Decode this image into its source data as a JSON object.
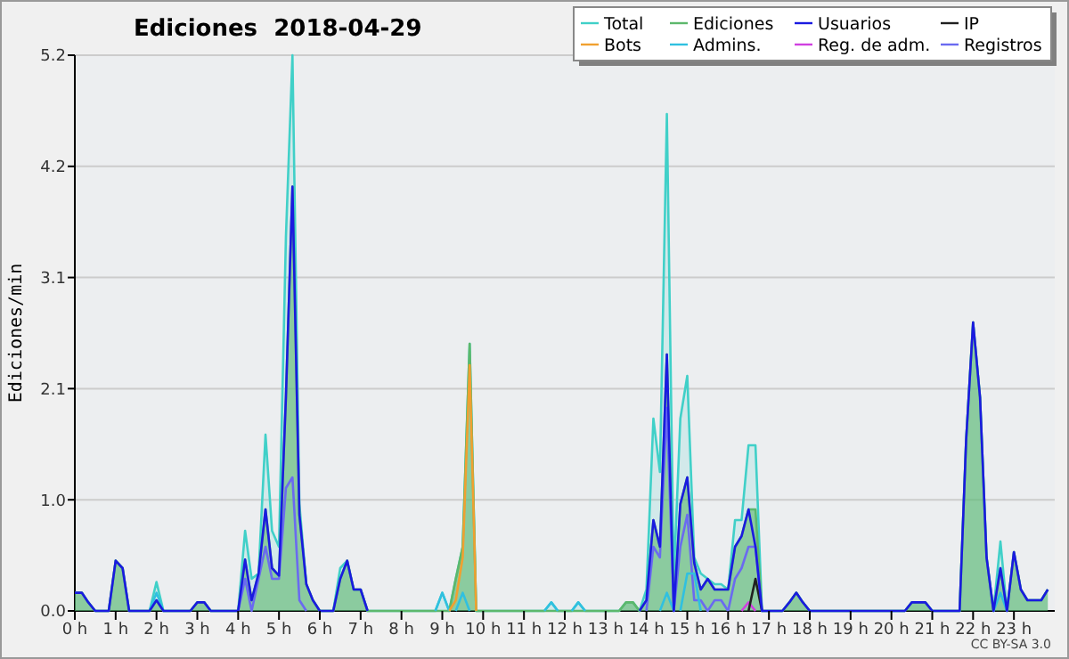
{
  "chart_data": {
    "type": "line",
    "title": "Ediciones  2018-04-29",
    "ylabel": "Ediciones/min",
    "xlim": [
      0,
      24
    ],
    "xticks": [
      {
        "value": 0,
        "label": "0 h"
      },
      {
        "value": 1,
        "label": "1 h"
      },
      {
        "value": 2,
        "label": "2 h"
      },
      {
        "value": 3,
        "label": "3 h"
      },
      {
        "value": 4,
        "label": "4 h"
      },
      {
        "value": 5,
        "label": "5 h"
      },
      {
        "value": 6,
        "label": "6 h"
      },
      {
        "value": 7,
        "label": "7 h"
      },
      {
        "value": 8,
        "label": "8 h"
      },
      {
        "value": 9,
        "label": "9 h"
      },
      {
        "value": 10,
        "label": "10 h"
      },
      {
        "value": 11,
        "label": "11 h"
      },
      {
        "value": 12,
        "label": "12 h"
      },
      {
        "value": 13,
        "label": "13 h"
      },
      {
        "value": 14,
        "label": "14 h"
      },
      {
        "value": 15,
        "label": "15 h"
      },
      {
        "value": 16,
        "label": "16 h"
      },
      {
        "value": 17,
        "label": "17 h"
      },
      {
        "value": 18,
        "label": "18 h"
      },
      {
        "value": 19,
        "label": "19 h"
      },
      {
        "value": 20,
        "label": "20 h"
      },
      {
        "value": 21,
        "label": "21 h"
      },
      {
        "value": 22,
        "label": "22 h"
      },
      {
        "value": 23,
        "label": "23 h"
      }
    ],
    "ylim": [
      0,
      5.2
    ],
    "yticks": [
      {
        "value": 0,
        "label": "0.0"
      },
      {
        "value": 1.04,
        "label": "1.0"
      },
      {
        "value": 2.08,
        "label": "2.1"
      },
      {
        "value": 3.12,
        "label": "3.1"
      },
      {
        "value": 4.16,
        "label": "4.2"
      },
      {
        "value": 5.2,
        "label": "5.2"
      }
    ],
    "grid": "y",
    "legend": "top right",
    "annotations": [
      "CC BY-SA 3.0"
    ],
    "series": [
      {
        "name": "Total",
        "type": "area",
        "color": "#40d0c8",
        "x": [
          0,
          0.17,
          0.33,
          0.5,
          0.83,
          1,
          1.17,
          1.33,
          1.83,
          2,
          2.17,
          2.83,
          3,
          3.17,
          3.33,
          4,
          4.17,
          4.33,
          4.5,
          4.67,
          4.83,
          5,
          5.17,
          5.33,
          5.5,
          5.67,
          5.83,
          6,
          6.33,
          6.5,
          6.67,
          6.83,
          7,
          7.17,
          8.83,
          9,
          9.17,
          9.33,
          9.5,
          9.67,
          9.83,
          11.5,
          11.67,
          11.83,
          12.17,
          12.33,
          12.5,
          13.33,
          13.5,
          13.67,
          13.83,
          14,
          14.17,
          14.33,
          14.5,
          14.67,
          14.83,
          15,
          15.17,
          15.33,
          15.5,
          15.67,
          15.83,
          16,
          16.17,
          16.33,
          16.5,
          16.67,
          16.83,
          17.33,
          17.5,
          17.67,
          17.83,
          18,
          20.33,
          20.5,
          20.67,
          20.83,
          21,
          21.67,
          21.83,
          22,
          22.17,
          22.33,
          22.5,
          22.67,
          22.83,
          23,
          23.17,
          23.33,
          23.5,
          23.67,
          23.83
        ],
        "values": [
          0.17,
          0.17,
          0.08,
          0,
          0,
          0.47,
          0.4,
          0,
          0,
          0.27,
          0,
          0,
          0.08,
          0.08,
          0,
          0,
          0.75,
          0.3,
          0.35,
          1.65,
          0.75,
          0.6,
          3.5,
          5.2,
          1.0,
          0.25,
          0.1,
          0,
          0,
          0.4,
          0.47,
          0.2,
          0.2,
          0,
          0,
          0.17,
          0,
          0.3,
          0.6,
          2.5,
          0,
          0,
          0.08,
          0,
          0,
          0.08,
          0,
          0,
          0.08,
          0.08,
          0,
          0.2,
          1.8,
          1.3,
          4.65,
          0.3,
          1.8,
          2.2,
          0.5,
          0.35,
          0.3,
          0.25,
          0.25,
          0.2,
          0.85,
          0.85,
          1.55,
          1.55,
          0,
          0,
          0.08,
          0.17,
          0.08,
          0,
          0,
          0.08,
          0.08,
          0.08,
          0,
          0,
          1.6,
          2.7,
          2.0,
          0.5,
          0,
          0.65,
          0,
          0.55,
          0.2,
          0.1,
          0.1,
          0.1,
          0.2
        ]
      },
      {
        "name": "Ediciones",
        "type": "area",
        "color": "#5cb86c",
        "x": [
          0,
          0.17,
          0.33,
          0.5,
          0.83,
          1,
          1.17,
          1.33,
          1.83,
          2,
          2.17,
          2.83,
          3,
          3.17,
          3.33,
          4,
          4.17,
          4.33,
          4.5,
          4.67,
          4.83,
          5,
          5.17,
          5.33,
          5.5,
          5.67,
          5.83,
          6,
          6.33,
          6.5,
          6.67,
          6.83,
          7,
          7.17,
          9.17,
          9.33,
          9.5,
          9.67,
          9.83,
          13.33,
          13.5,
          13.67,
          13.83,
          14,
          14.17,
          14.33,
          14.5,
          14.67,
          14.83,
          15,
          15.17,
          15.33,
          15.5,
          15.67,
          15.83,
          16,
          16.17,
          16.33,
          16.5,
          16.67,
          16.83,
          17.33,
          17.5,
          17.67,
          17.83,
          18,
          20.33,
          20.5,
          20.67,
          20.83,
          21,
          21.67,
          21.83,
          22,
          22.17,
          22.33,
          22.5,
          22.67,
          22.83,
          23,
          23.17,
          23.33,
          23.5,
          23.67,
          23.83
        ],
        "values": [
          0.17,
          0.17,
          0.08,
          0,
          0,
          0.47,
          0.4,
          0,
          0,
          0.1,
          0,
          0,
          0.08,
          0.08,
          0,
          0,
          0.48,
          0.1,
          0.35,
          0.95,
          0.4,
          0.33,
          2.0,
          3.97,
          0.9,
          0.25,
          0.1,
          0,
          0,
          0.3,
          0.47,
          0.2,
          0.2,
          0,
          0,
          0.3,
          0.6,
          2.5,
          0,
          0,
          0.08,
          0.08,
          0,
          0.1,
          0.85,
          0.6,
          2.4,
          0,
          1.0,
          1.25,
          0.45,
          0.2,
          0.3,
          0.2,
          0.2,
          0.2,
          0.6,
          0.7,
          0.95,
          0.95,
          0,
          0,
          0.08,
          0.17,
          0.08,
          0,
          0,
          0.08,
          0.08,
          0.08,
          0,
          0,
          1.6,
          2.7,
          2.0,
          0.5,
          0,
          0.4,
          0,
          0.55,
          0.2,
          0.1,
          0.1,
          0.1,
          0.2
        ]
      },
      {
        "name": "Usuarios",
        "color": "#1a1ae0",
        "x": [
          0,
          0.17,
          0.33,
          0.5,
          0.83,
          1,
          1.17,
          1.33,
          1.83,
          2,
          2.17,
          2.83,
          3,
          3.17,
          3.33,
          4,
          4.17,
          4.33,
          4.5,
          4.67,
          4.83,
          5,
          5.17,
          5.33,
          5.5,
          5.67,
          5.83,
          6,
          6.33,
          6.5,
          6.67,
          6.83,
          7,
          7.17,
          10,
          13.83,
          14,
          14.17,
          14.33,
          14.5,
          14.67,
          14.83,
          15,
          15.17,
          15.33,
          15.5,
          15.67,
          15.83,
          16,
          16.17,
          16.33,
          16.5,
          16.67,
          16.83,
          17.33,
          17.5,
          17.67,
          17.83,
          18,
          20.33,
          20.5,
          20.67,
          20.83,
          21,
          21.67,
          21.83,
          22,
          22.17,
          22.33,
          22.5,
          22.67,
          22.83,
          23,
          23.17,
          23.33,
          23.5,
          23.67,
          23.83
        ],
        "values": [
          0.17,
          0.17,
          0.08,
          0,
          0,
          0.47,
          0.4,
          0,
          0,
          0.1,
          0,
          0,
          0.08,
          0.08,
          0,
          0,
          0.48,
          0.1,
          0.35,
          0.95,
          0.4,
          0.33,
          2.0,
          3.97,
          0.9,
          0.25,
          0.1,
          0,
          0,
          0.3,
          0.47,
          0.2,
          0.2,
          0,
          null,
          0,
          0.1,
          0.85,
          0.6,
          2.4,
          0,
          1.0,
          1.25,
          0.45,
          0.2,
          0.3,
          0.2,
          0.2,
          0.2,
          0.6,
          0.7,
          0.95,
          0.6,
          0,
          0,
          0.08,
          0.17,
          0.08,
          0,
          0,
          0.08,
          0.08,
          0.08,
          0,
          0,
          1.6,
          2.7,
          2.0,
          0.5,
          0,
          0.4,
          0,
          0.55,
          0.2,
          0.1,
          0.1,
          0.1,
          0.2
        ]
      },
      {
        "name": "IP",
        "color": "#202020",
        "x": [
          16.5,
          16.67,
          16.83
        ],
        "values": [
          0,
          0.3,
          0
        ]
      },
      {
        "name": "Bots",
        "color": "#f0a030",
        "x": [
          9.17,
          9.33,
          9.5,
          9.67,
          9.83
        ],
        "values": [
          0,
          0.1,
          0.5,
          2.3,
          0
        ]
      },
      {
        "name": "Admins.",
        "color": "#30c0e0",
        "x": [
          1.83,
          2,
          2.17,
          5,
          8.83,
          9,
          9.17,
          9.25,
          9.33,
          9.5,
          9.67,
          10,
          11.5,
          11.67,
          11.83,
          12,
          12.17,
          12.33,
          12.5,
          13,
          14.33,
          14.5,
          14.67,
          14.75,
          14.83,
          15,
          15.17,
          15.33,
          20,
          22.5,
          22.67,
          22.83
        ],
        "values": [
          0,
          0.17,
          0,
          null,
          0,
          0.17,
          0,
          null,
          0,
          0.17,
          0,
          null,
          0,
          0.08,
          0,
          null,
          0,
          0.08,
          0,
          null,
          0,
          0.17,
          0,
          null,
          0,
          0.35,
          0.35,
          0,
          null,
          0,
          0.17,
          0
        ]
      },
      {
        "name": "Reg. de adm.",
        "color": "#d040e0",
        "x": [
          16.33,
          16.5,
          16.67
        ],
        "values": [
          0,
          0.08,
          0
        ]
      },
      {
        "name": "Registros",
        "color": "#6a6af0",
        "x": [
          4,
          4.17,
          4.33,
          4.5,
          4.67,
          4.83,
          5,
          5.17,
          5.33,
          5.5,
          5.67,
          10,
          14,
          14.17,
          14.33,
          14.5,
          14.67,
          14.83,
          15,
          15.17,
          15.33,
          15.5,
          15.67,
          15.83,
          16,
          16.17,
          16.33,
          16.5,
          16.67,
          16.83
        ],
        "values": [
          0,
          0.3,
          0,
          0.3,
          0.6,
          0.3,
          0.3,
          1.15,
          1.25,
          0.1,
          0,
          null,
          0,
          0.6,
          0.5,
          1.9,
          0,
          0.6,
          0.9,
          0.1,
          0.1,
          0,
          0.1,
          0.1,
          0,
          0.3,
          0.4,
          0.6,
          0.6,
          0
        ]
      }
    ]
  }
}
